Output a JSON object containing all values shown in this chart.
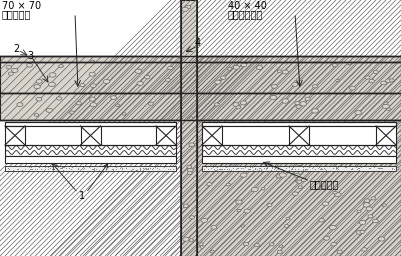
{
  "bg": "white",
  "lc": "#222222",
  "concrete_bg": "#d8d4cc",
  "concrete_hatch": "#666666",
  "board_bg": "#ffffff",
  "insul_bg": "#ffffff",
  "label_tl1": "70 × 70",
  "label_tl2": "石膏板标块",
  "label_tr1": "40 × 40",
  "label_tr2": "聚苯乙希垒块",
  "label_br": "纸面石膏板",
  "num1": "1",
  "num2": "2",
  "num3": "3",
  "num4": "4",
  "fig_w": 4.01,
  "fig_h": 2.56,
  "dpi": 100
}
